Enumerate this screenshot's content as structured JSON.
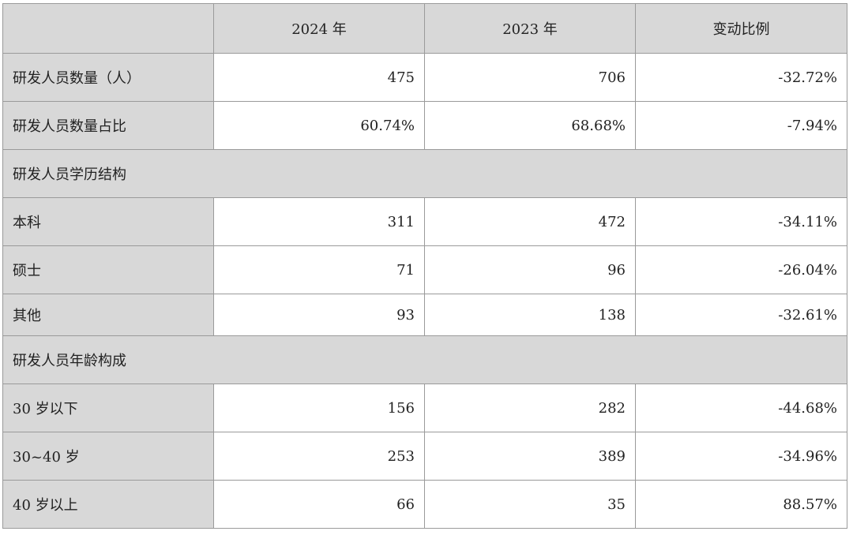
{
  "header": {
    "col_0": "",
    "col_1": "2024 年",
    "col_2": "2023 年",
    "col_3": "变动比例"
  },
  "rows": [
    {
      "type": "data",
      "label": "研发人员数量（人）",
      "v2024": "475",
      "v2023": "706",
      "change": "-32.72%"
    },
    {
      "type": "data",
      "label": "研发人员数量占比",
      "v2024": "60.74%",
      "v2023": "68.68%",
      "change": "-7.94%"
    },
    {
      "type": "section",
      "label": "研发人员学历结构"
    },
    {
      "type": "data",
      "label": "本科",
      "v2024": "311",
      "v2023": "472",
      "change": "-34.11%"
    },
    {
      "type": "data",
      "label": "硕士",
      "v2024": "71",
      "v2023": "96",
      "change": "-26.04%"
    },
    {
      "type": "data",
      "label": "其他",
      "v2024": "93",
      "v2023": "138",
      "change": "-32.61%"
    },
    {
      "type": "section",
      "label": "研发人员年龄构成"
    },
    {
      "type": "data",
      "label": "30 岁以下",
      "v2024": "156",
      "v2023": "282",
      "change": "-44.68%"
    },
    {
      "type": "data",
      "label": "30~40 岁",
      "v2024": "253",
      "v2023": "389",
      "change": "-34.96%"
    },
    {
      "type": "data",
      "label": "40 岁以上",
      "v2024": "66",
      "v2023": "35",
      "change": "88.57%"
    }
  ]
}
